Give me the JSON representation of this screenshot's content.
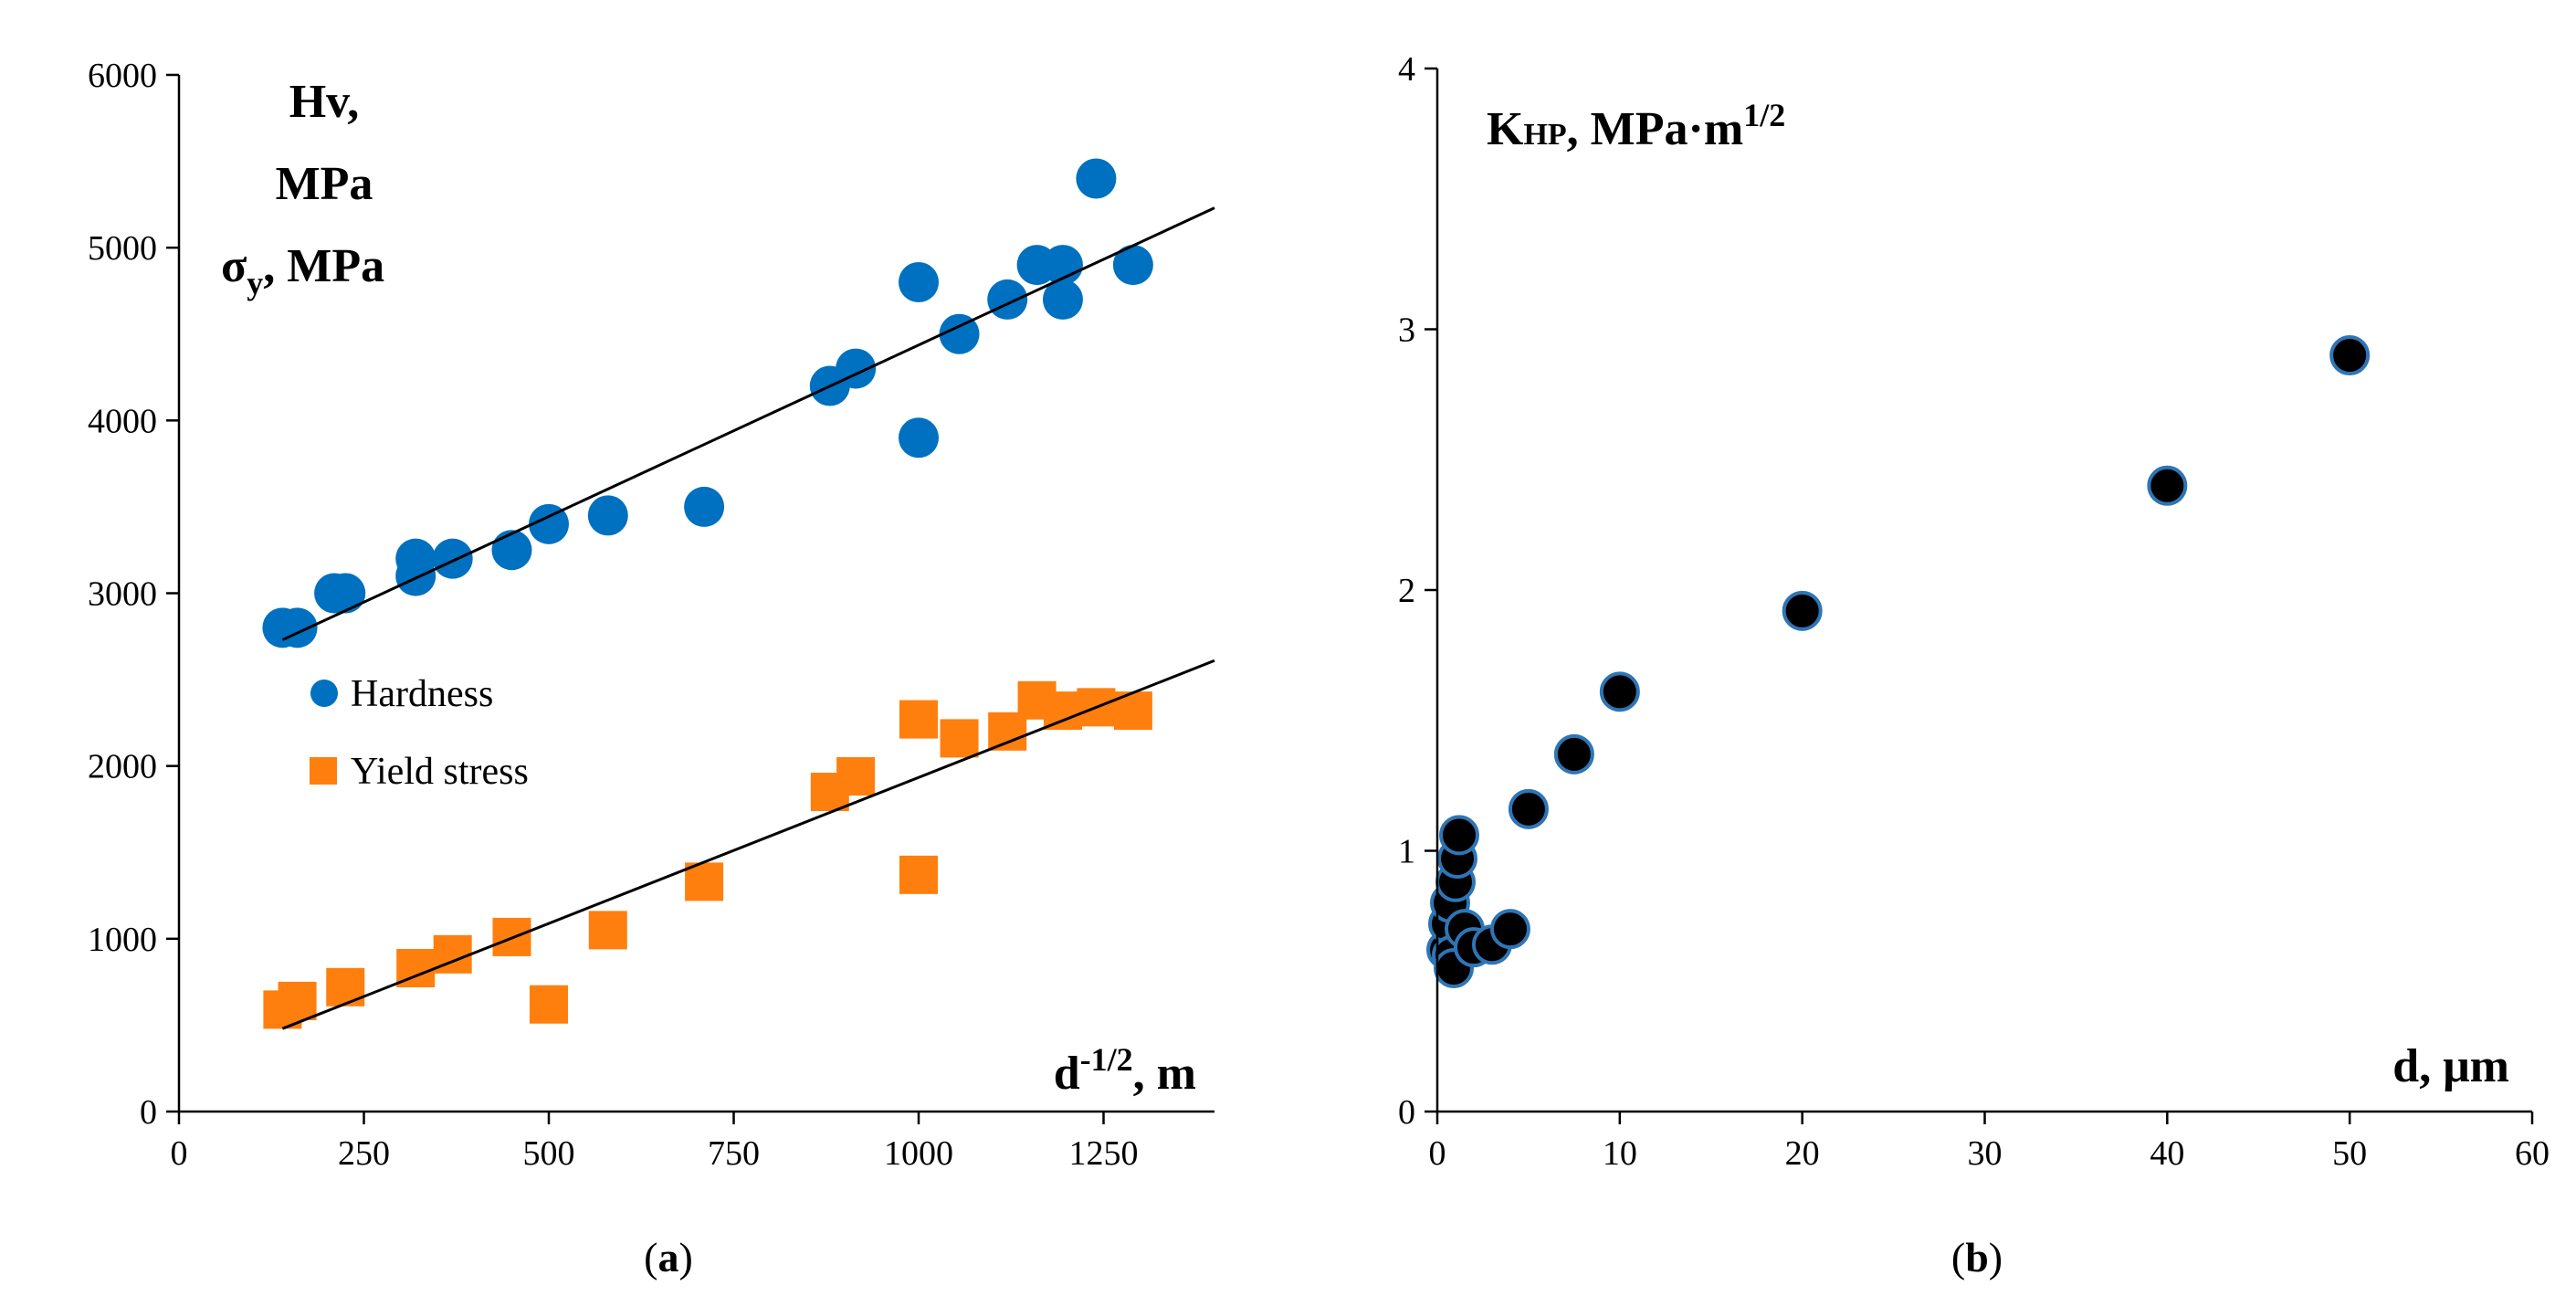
{
  "colors": {
    "hardness": "#0070c0",
    "yield": "#ff7f0e",
    "kpoint": "#000000",
    "kpoint_edge": "#2e75b6"
  },
  "chart_data": [
    {
      "type": "scatter",
      "panel": "(a)",
      "caption_open": "(",
      "caption_letter": "a",
      "caption_close": ")",
      "xlabel": {
        "base": "d",
        "sup": "-1/2",
        "rest": ", m"
      },
      "ylabel_lines": [
        "Hv,",
        "MPa"
      ],
      "ylabel_sigma": {
        "base": "σ",
        "sub": "y",
        "rest": ", MPa"
      },
      "xlim": [
        0,
        1400
      ],
      "ylim": [
        0,
        6000
      ],
      "xticks": [
        0,
        250,
        500,
        750,
        1000,
        1250
      ],
      "yticks": [
        0,
        1000,
        2000,
        3000,
        4000,
        5000,
        6000
      ],
      "legend": [
        "Hardness",
        "Yield stress"
      ],
      "series": [
        {
          "name": "Hardness",
          "marker": "circle",
          "points": [
            [
              140,
              2800
            ],
            [
              160,
              2800
            ],
            [
              210,
              3000
            ],
            [
              225,
              3000
            ],
            [
              320,
              3200
            ],
            [
              320,
              3100
            ],
            [
              370,
              3200
            ],
            [
              450,
              3250
            ],
            [
              500,
              3400
            ],
            [
              580,
              3450
            ],
            [
              710,
              3500
            ],
            [
              880,
              4200
            ],
            [
              915,
              4300
            ],
            [
              1000,
              4800
            ],
            [
              1000,
              3900
            ],
            [
              1055,
              4500
            ],
            [
              1120,
              4700
            ],
            [
              1160,
              4900
            ],
            [
              1195,
              4900
            ],
            [
              1195,
              4700
            ],
            [
              1240,
              5400
            ],
            [
              1290,
              4900
            ]
          ],
          "trend": [
            [
              140,
              2730
            ],
            [
              1400,
              5230
            ]
          ]
        },
        {
          "name": "Yield stress",
          "marker": "square",
          "points": [
            [
              140,
              590
            ],
            [
              160,
              640
            ],
            [
              225,
              720
            ],
            [
              320,
              830
            ],
            [
              370,
              910
            ],
            [
              450,
              1010
            ],
            [
              500,
              620
            ],
            [
              580,
              1050
            ],
            [
              710,
              1330
            ],
            [
              880,
              1850
            ],
            [
              915,
              1940
            ],
            [
              1000,
              2270
            ],
            [
              1000,
              1370
            ],
            [
              1055,
              2160
            ],
            [
              1120,
              2200
            ],
            [
              1160,
              2380
            ],
            [
              1195,
              2320
            ],
            [
              1240,
              2340
            ],
            [
              1290,
              2320
            ]
          ],
          "trend": [
            [
              140,
              480
            ],
            [
              1400,
              2610
            ]
          ]
        }
      ]
    },
    {
      "type": "scatter",
      "panel": "(b)",
      "caption_open": "(",
      "caption_letter": "b",
      "caption_close": ")",
      "xlabel": {
        "base": "d, μm"
      },
      "ylabel": {
        "base": "K",
        "small": "HP",
        "rest": ", MPa·m",
        "sup": "1/2"
      },
      "xlim": [
        0,
        60
      ],
      "ylim": [
        0,
        4
      ],
      "xticks": [
        0,
        10,
        20,
        30,
        40,
        50,
        60
      ],
      "yticks": [
        0,
        1,
        2,
        3,
        4
      ],
      "series": [
        {
          "name": "K_HP",
          "marker": "circle",
          "points": [
            [
              0.5,
              0.62
            ],
            [
              0.6,
              0.72
            ],
            [
              0.7,
              0.8
            ],
            [
              0.8,
              0.6
            ],
            [
              0.9,
              0.55
            ],
            [
              1.0,
              0.88
            ],
            [
              1.1,
              0.97
            ],
            [
              1.2,
              1.06
            ],
            [
              1.5,
              0.7
            ],
            [
              2.0,
              0.63
            ],
            [
              3.0,
              0.64
            ],
            [
              4.0,
              0.7
            ],
            [
              5.0,
              1.16
            ],
            [
              7.5,
              1.37
            ],
            [
              10.0,
              1.61
            ],
            [
              20.0,
              1.92
            ],
            [
              40.0,
              2.4
            ],
            [
              50.0,
              2.9
            ]
          ]
        }
      ]
    }
  ]
}
